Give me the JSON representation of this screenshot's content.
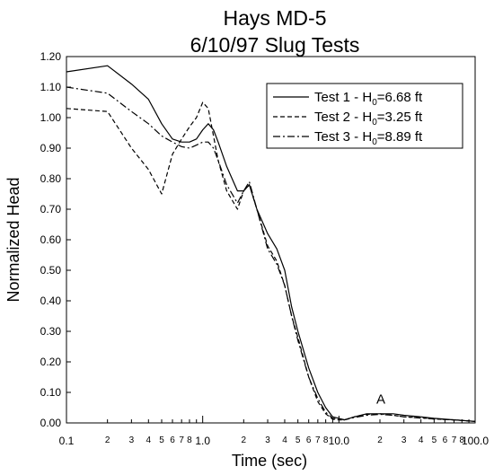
{
  "chart_data": {
    "type": "line",
    "title": "Hays MD-5",
    "subtitle": "6/10/97 Slug Tests",
    "xlabel": "Time (sec)",
    "ylabel": "Normalized Head",
    "xscale": "log",
    "xlim": [
      0.1,
      100.0
    ],
    "ylim": [
      0.0,
      1.2
    ],
    "y_ticks": [
      "0.00",
      "0.10",
      "0.20",
      "0.30",
      "0.40",
      "0.50",
      "0.60",
      "0.70",
      "0.80",
      "0.90",
      "1.00",
      "1.10",
      "1.20"
    ],
    "x_major_ticks": [
      "0.1",
      "1.0",
      "10.0",
      "100.0"
    ],
    "x_minor_labels": [
      "2",
      "3",
      "4",
      "5",
      "6",
      "7",
      "8"
    ],
    "grid": false,
    "legend_position": "top-right",
    "annotations": [
      {
        "text": "A",
        "x": 18.0,
        "y": 0.045
      }
    ],
    "series": [
      {
        "name": "Test 1 - H0=6.68 ft",
        "legend_main": "Test 1 - H",
        "legend_sub": "0",
        "legend_tail": "=6.68 ft",
        "style": "solid",
        "x": [
          0.1,
          0.2,
          0.3,
          0.4,
          0.5,
          0.6,
          0.7,
          0.8,
          0.9,
          1.0,
          1.1,
          1.2,
          1.3,
          1.5,
          1.8,
          2.0,
          2.2,
          2.5,
          3.0,
          3.5,
          4.0,
          4.5,
          5.0,
          6.0,
          7.0,
          8.0,
          9.0,
          10.0,
          11.0,
          13.0,
          16.0,
          20.0,
          25.0,
          30.0,
          40.0,
          50.0,
          70.0,
          100.0
        ],
        "y": [
          1.15,
          1.17,
          1.11,
          1.06,
          0.98,
          0.93,
          0.92,
          0.92,
          0.93,
          0.96,
          0.98,
          0.96,
          0.92,
          0.84,
          0.76,
          0.76,
          0.78,
          0.7,
          0.62,
          0.57,
          0.5,
          0.38,
          0.3,
          0.18,
          0.1,
          0.05,
          0.02,
          0.015,
          0.01,
          0.02,
          0.03,
          0.03,
          0.03,
          0.025,
          0.02,
          0.015,
          0.01,
          0.005
        ]
      },
      {
        "name": "Test 2 - H0=3.25 ft",
        "legend_main": "Test 2 - H",
        "legend_sub": "0",
        "legend_tail": "=3.25 ft",
        "style": "dashed",
        "x": [
          0.1,
          0.2,
          0.3,
          0.4,
          0.5,
          0.6,
          0.7,
          0.8,
          0.9,
          1.0,
          1.1,
          1.2,
          1.3,
          1.5,
          1.8,
          2.0,
          2.2,
          2.5,
          3.0,
          3.5,
          4.0,
          4.5,
          5.0,
          6.0,
          7.0,
          8.0,
          9.0,
          10.0,
          11.0,
          13.0,
          16.0,
          20.0,
          25.0,
          30.0,
          40.0,
          50.0,
          70.0,
          100.0
        ],
        "y": [
          1.03,
          1.02,
          0.9,
          0.83,
          0.75,
          0.88,
          0.93,
          0.97,
          1.0,
          1.05,
          1.03,
          0.94,
          0.86,
          0.76,
          0.7,
          0.76,
          0.78,
          0.7,
          0.58,
          0.53,
          0.45,
          0.35,
          0.28,
          0.15,
          0.07,
          0.03,
          0.012,
          0.01,
          0.01,
          0.02,
          0.028,
          0.03,
          0.025,
          0.02,
          0.017,
          0.013,
          0.01,
          0.005
        ]
      },
      {
        "name": "Test 3 - H0=8.89 ft",
        "legend_main": "Test 3 - H",
        "legend_sub": "0",
        "legend_tail": "=8.89 ft",
        "style": "dashdot",
        "x": [
          0.1,
          0.2,
          0.3,
          0.4,
          0.5,
          0.6,
          0.7,
          0.8,
          0.9,
          1.0,
          1.1,
          1.2,
          1.3,
          1.5,
          1.8,
          2.0,
          2.2,
          2.5,
          3.0,
          3.5,
          4.0,
          4.5,
          5.0,
          6.0,
          7.0,
          8.0,
          9.0,
          10.0,
          11.0,
          13.0,
          16.0,
          20.0,
          25.0,
          30.0,
          40.0,
          50.0,
          70.0,
          100.0
        ],
        "y": [
          1.1,
          1.08,
          1.02,
          0.98,
          0.94,
          0.92,
          0.905,
          0.9,
          0.91,
          0.92,
          0.92,
          0.9,
          0.86,
          0.78,
          0.72,
          0.76,
          0.79,
          0.7,
          0.57,
          0.52,
          0.45,
          0.35,
          0.27,
          0.15,
          0.08,
          0.035,
          0.015,
          0.012,
          0.01,
          0.018,
          0.025,
          0.028,
          0.025,
          0.02,
          0.016,
          0.013,
          0.01,
          0.005
        ]
      }
    ]
  }
}
